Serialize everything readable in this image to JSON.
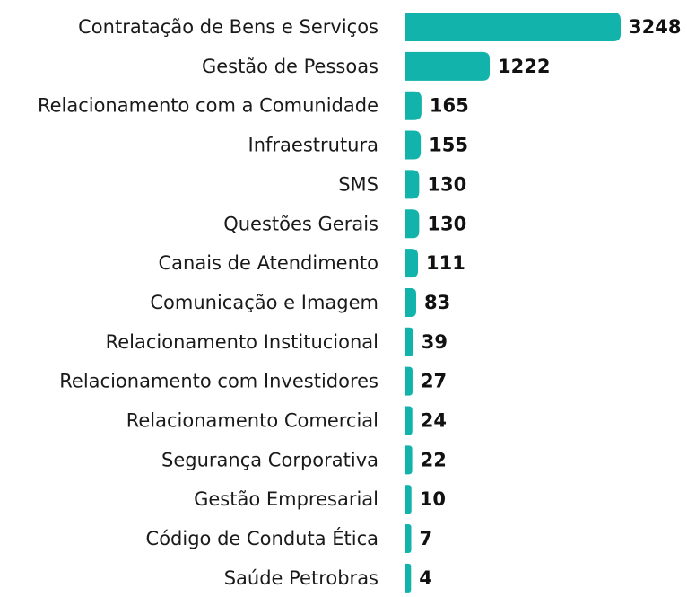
{
  "chart_data": {
    "type": "bar",
    "orientation": "horizontal",
    "color": "#12b3ab",
    "categories": [
      "Contratação de Bens e Serviços",
      "Gestão de Pessoas",
      "Relacionamento com a Comunidade",
      "Infraestrutura",
      "SMS",
      "Questões Gerais",
      "Canais de Atendimento",
      "Comunicação e Imagem",
      "Relacionamento Institucional",
      "Relacionamento com Investidores",
      "Relacionamento Comercial",
      "Segurança Corporativa",
      "Gestão Empresarial",
      "Código de Conduta Ética",
      "Saúde Petrobras"
    ],
    "values": [
      3248,
      1222,
      165,
      155,
      130,
      130,
      111,
      83,
      39,
      27,
      24,
      22,
      10,
      7,
      4
    ]
  }
}
